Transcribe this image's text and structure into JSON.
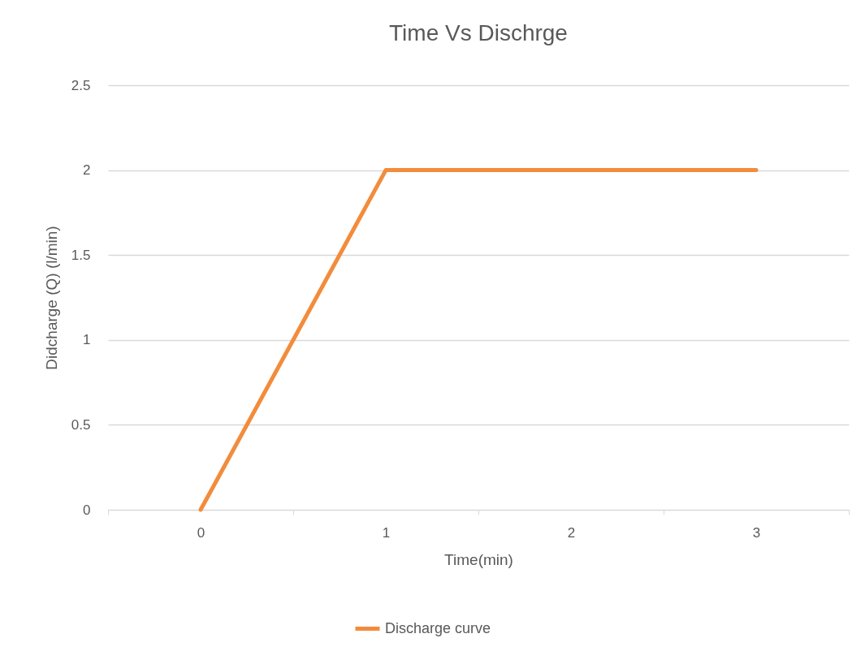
{
  "chart_data": {
    "type": "line",
    "title": "Time Vs Dischrge",
    "xlabel": "Time(min)",
    "ylabel": "Didcharge (Q) (l/min)",
    "categories": [
      "0",
      "1",
      "2",
      "3"
    ],
    "series": [
      {
        "name": "Discharge curve",
        "color": "#f28c3c",
        "values": [
          0,
          2,
          2,
          2
        ]
      }
    ],
    "ylim": [
      0,
      2.5
    ],
    "yticks": [
      0,
      0.5,
      1,
      1.5,
      2,
      2.5
    ],
    "grid": "y",
    "legend": "bottom",
    "marker": "none"
  }
}
